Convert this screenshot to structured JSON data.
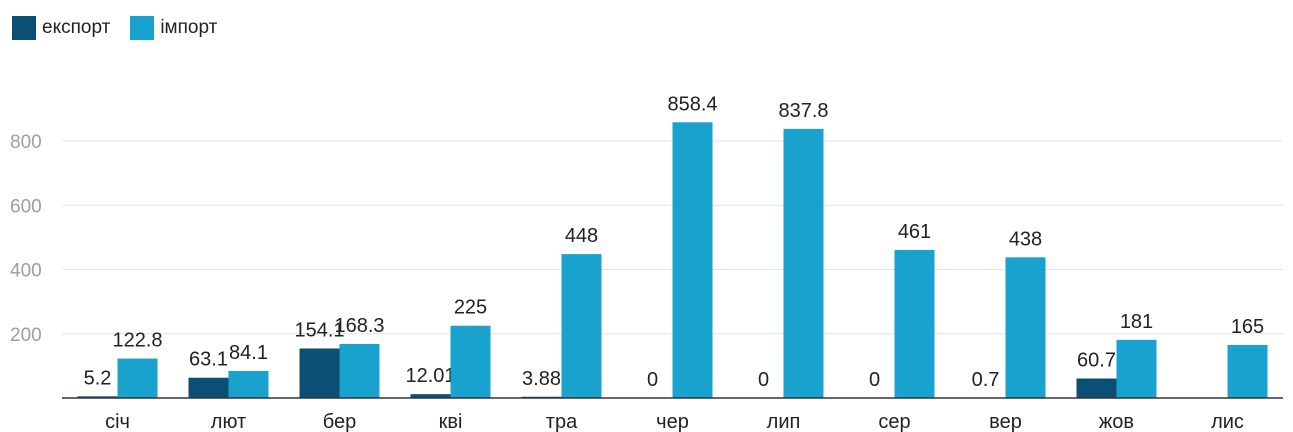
{
  "chart_data": {
    "type": "bar",
    "categories": [
      "січ",
      "лют",
      "бер",
      "кві",
      "тра",
      "чер",
      "лип",
      "сер",
      "вер",
      "жов",
      "лис"
    ],
    "series": [
      {
        "name": "експорт",
        "color": "#0b4f75",
        "values": [
          5.2,
          63.1,
          154.1,
          12.01,
          3.88,
          0,
          0,
          0,
          0.7,
          60.7,
          null
        ],
        "labels": [
          "5.2",
          "63.1",
          "154.1",
          "12.01",
          "3.88",
          "0",
          "0",
          "0",
          "0.7",
          "60.7",
          ""
        ]
      },
      {
        "name": "імпорт",
        "color": "#1aa2cf",
        "values": [
          122.8,
          84.1,
          168.3,
          225,
          448,
          858.4,
          837.8,
          461,
          438,
          181,
          165
        ],
        "labels": [
          "122.8",
          "84.1",
          "168.3",
          "225",
          "448",
          "858.4",
          "837.8",
          "461",
          "438",
          "181",
          "165"
        ]
      }
    ],
    "yticks": [
      "200",
      "400",
      "600",
      "800"
    ],
    "ytick_values": [
      200,
      400,
      600,
      800
    ],
    "ylim": [
      0,
      950
    ],
    "grid": true,
    "legend_position": "top-left",
    "colors": {
      "grid": "#e2e2e2",
      "axis": "#333333",
      "tick_text": "#9e9e9e",
      "label_text": "#222222"
    }
  }
}
